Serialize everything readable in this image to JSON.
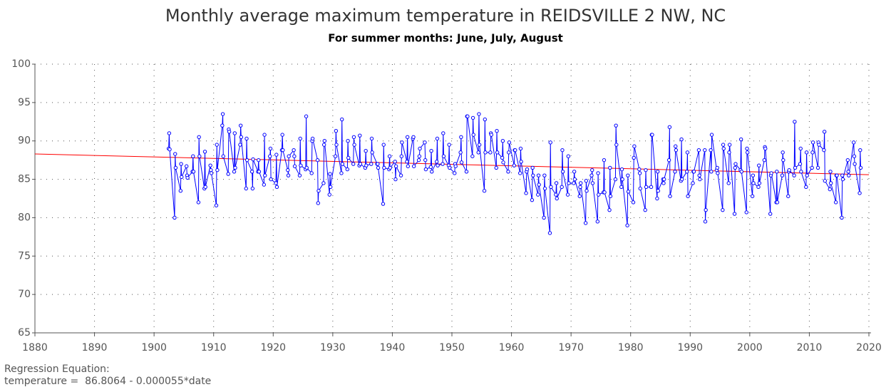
{
  "chart_data": {
    "type": "line",
    "title": "Monthly average maximum temperature in REIDSVILLE 2 NW, NC",
    "subtitle": "For summer months: June, July, August",
    "annotations": [
      "Regression Equation:",
      "temperature =  86.8064 - 0.000055*date"
    ],
    "xlim": [
      1880,
      2020
    ],
    "xticks": [
      1880,
      1890,
      1900,
      1910,
      1920,
      1930,
      1940,
      1950,
      1960,
      1970,
      1980,
      1990,
      2000,
      2010,
      2020
    ],
    "ylim": [
      65,
      100
    ],
    "yticks": [
      65,
      70,
      75,
      80,
      85,
      90,
      95,
      100
    ],
    "grid": true,
    "series": [
      {
        "color": "#0000ff",
        "markers": true,
        "x": [
          1902.45,
          1902.54,
          1902.62,
          1903.45,
          1903.54,
          1903.62,
          1904.45,
          1904.54,
          1904.62,
          1905.45,
          1905.54,
          1905.62,
          1906.45,
          1906.54,
          1906.62,
          1907.45,
          1907.54,
          1907.62,
          1908.45,
          1908.54,
          1908.62,
          1909.45,
          1909.54,
          1909.62,
          1910.45,
          1910.54,
          1910.62,
          1911.45,
          1911.54,
          1911.62,
          1912.45,
          1912.54,
          1912.62,
          1913.45,
          1913.54,
          1913.62,
          1914.45,
          1914.54,
          1914.62,
          1915.45,
          1915.54,
          1915.62,
          1916.45,
          1916.54,
          1916.62,
          1917.45,
          1917.54,
          1917.62,
          1918.45,
          1918.54,
          1918.62,
          1919.45,
          1919.54,
          1919.62,
          1920.45,
          1920.54,
          1920.62,
          1921.45,
          1921.54,
          1921.62,
          1922.45,
          1922.54,
          1922.62,
          1923.45,
          1923.54,
          1923.62,
          1924.45,
          1924.54,
          1924.62,
          1925.45,
          1925.54,
          1925.62,
          1926.45,
          1926.54,
          1926.62,
          1927.45,
          1927.54,
          1927.62,
          1928.45,
          1928.54,
          1928.62,
          1929.45,
          1929.54,
          1929.62,
          1930.45,
          1930.54,
          1930.62,
          1931.45,
          1931.54,
          1931.62,
          1932.45,
          1932.54,
          1932.62,
          1933.45,
          1933.54,
          1933.62,
          1934.45,
          1934.54,
          1934.62,
          1935.45,
          1935.54,
          1935.62,
          1936.45,
          1936.54,
          1936.62,
          1937.45,
          1937.54,
          1937.62,
          1938.45,
          1938.54,
          1938.62,
          1939.45,
          1939.54,
          1939.62,
          1940.45,
          1940.54,
          1940.62,
          1941.45,
          1941.54,
          1941.62,
          1942.45,
          1942.54,
          1942.62,
          1943.45,
          1943.54,
          1943.62,
          1944.45,
          1944.54,
          1944.62,
          1945.45,
          1945.54,
          1945.62,
          1946.45,
          1946.54,
          1946.62,
          1947.45,
          1947.54,
          1947.62,
          1948.45,
          1948.54,
          1948.62,
          1949.45,
          1949.54,
          1949.62,
          1950.45,
          1950.54,
          1950.62,
          1951.45,
          1951.54,
          1951.62,
          1952.45,
          1952.54,
          1952.62,
          1953.45,
          1953.54,
          1953.62,
          1954.45,
          1954.54,
          1954.62,
          1955.45,
          1955.54,
          1955.62,
          1956.45,
          1956.54,
          1956.62,
          1957.45,
          1957.54,
          1957.62,
          1958.45,
          1958.54,
          1958.62,
          1959.45,
          1959.54,
          1959.62,
          1960.45,
          1960.54,
          1960.62,
          1961.45,
          1961.54,
          1961.62,
          1962.45,
          1962.54,
          1962.62,
          1963.45,
          1963.54,
          1963.62,
          1964.45,
          1964.54,
          1964.62,
          1965.45,
          1965.54,
          1965.62,
          1966.45,
          1966.54,
          1966.62,
          1967.45,
          1967.54,
          1967.62,
          1968.45,
          1968.54,
          1968.62,
          1969.45,
          1969.54,
          1969.62,
          1970.45,
          1970.54,
          1970.62,
          1971.45,
          1971.54,
          1971.62,
          1972.45,
          1972.54,
          1972.62,
          1973.45,
          1973.54,
          1973.62,
          1974.45,
          1974.54,
          1974.62,
          1975.45,
          1975.54,
          1975.62,
          1976.45,
          1976.54,
          1976.62,
          1977.45,
          1977.54,
          1977.62,
          1978.45,
          1978.54,
          1978.62,
          1979.45,
          1979.54,
          1979.62,
          1980.45,
          1980.54,
          1980.62,
          1981.45,
          1981.54,
          1981.62,
          1982.45,
          1982.54,
          1982.62,
          1983.45,
          1983.54,
          1983.62,
          1984.45,
          1984.54,
          1984.62,
          1985.45,
          1985.54,
          1985.62,
          1986.45,
          1986.54,
          1986.62,
          1987.45,
          1987.54,
          1987.62,
          1988.45,
          1988.54,
          1988.62,
          1989.45,
          1989.54,
          1989.62,
          1990.45,
          1990.54,
          1990.62,
          1991.45,
          1991.54,
          1991.62,
          1992.45,
          1992.54,
          1992.62,
          1993.45,
          1993.54,
          1993.62,
          1994.45,
          1994.54,
          1994.62,
          1995.45,
          1995.54,
          1995.62,
          1996.45,
          1996.54,
          1996.62,
          1997.45,
          1997.54,
          1997.62,
          1998.45,
          1998.54,
          1998.62,
          1999.45,
          1999.54,
          1999.62,
          2000.45,
          2000.54,
          2000.62,
          2001.45,
          2001.54,
          2001.62,
          2002.45,
          2002.54,
          2002.62,
          2003.45,
          2003.54,
          2003.62,
          2004.45,
          2004.54,
          2004.62,
          2005.45,
          2005.54,
          2005.62,
          2006.45,
          2006.54,
          2006.62,
          2007.45,
          2007.54,
          2007.62,
          2008.45,
          2008.54,
          2008.62,
          2009.45,
          2009.54,
          2009.62,
          2010.45,
          2010.54,
          2010.62,
          2011.45,
          2011.54,
          2011.62,
          2012.45,
          2012.54,
          2012.62,
          2013.45,
          2013.54,
          2013.62,
          2014.45,
          2014.54,
          2014.62,
          2015.45,
          2015.54,
          2015.62,
          2016.45,
          2016.54,
          2016.62,
          2017.45,
          2017.54,
          2017.62,
          2018.45,
          2018.54,
          2018.62
        ],
        "values": [
          89.0,
          91.0,
          88.9,
          80.0,
          88.3,
          86.5,
          83.5,
          87.0,
          85.3,
          86.7,
          85.5,
          85.2,
          86.0,
          88.0,
          86.0,
          82.0,
          90.5,
          88.0,
          83.8,
          88.6,
          84.0,
          86.8,
          86.2,
          85.8,
          81.6,
          89.5,
          86.2,
          92.0,
          93.5,
          88.0,
          85.7,
          91.5,
          91.2,
          86.0,
          91.0,
          86.5,
          89.5,
          92.0,
          90.5,
          83.8,
          90.3,
          87.5,
          86.0,
          83.8,
          87.6,
          86.0,
          87.5,
          86.0,
          84.3,
          90.8,
          85.5,
          88.0,
          89.0,
          85.0,
          84.5,
          88.2,
          84.0,
          88.8,
          90.8,
          88.8,
          86.2,
          85.5,
          88.0,
          88.8,
          88.0,
          86.7,
          85.5,
          90.3,
          86.8,
          86.3,
          93.2,
          86.5,
          85.8,
          90.0,
          90.3,
          87.5,
          81.9,
          83.5,
          84.5,
          89.5,
          90.0,
          83.0,
          85.7,
          84.0,
          88.0,
          91.3,
          89.5,
          85.8,
          92.8,
          87.0,
          86.3,
          90.0,
          87.8,
          87.0,
          90.5,
          89.5,
          86.8,
          90.7,
          87.0,
          86.5,
          88.7,
          86.8,
          87.0,
          90.3,
          88.5,
          87.0,
          87.0,
          86.5,
          81.8,
          89.5,
          86.5,
          86.3,
          88.0,
          86.5,
          87.3,
          85.0,
          86.7,
          85.5,
          88.0,
          89.8,
          87.3,
          90.5,
          86.7,
          90.3,
          90.5,
          86.7,
          87.5,
          88.0,
          89.0,
          89.8,
          87.5,
          86.3,
          86.6,
          88.7,
          86.0,
          87.3,
          90.3,
          86.8,
          87.0,
          91.0,
          88.0,
          86.8,
          89.5,
          86.5,
          85.8,
          87.0,
          86.7,
          88.5,
          90.5,
          87.2,
          86.0,
          93.2,
          93.2,
          88.0,
          93.0,
          90.8,
          88.5,
          93.5,
          89.5,
          83.5,
          92.8,
          88.5,
          88.5,
          91.0,
          90.8,
          86.5,
          91.3,
          88.5,
          87.8,
          90.0,
          87.2,
          86.0,
          88.5,
          89.8,
          86.8,
          88.8,
          88.8,
          85.8,
          89.0,
          87.3,
          83.2,
          86.0,
          86.3,
          82.3,
          86.5,
          85.5,
          83.0,
          85.5,
          84.3,
          80.0,
          85.5,
          83.8,
          78.0,
          89.8,
          84.0,
          83.0,
          84.5,
          82.5,
          84.0,
          88.8,
          86.0,
          83.0,
          88.0,
          84.5,
          84.5,
          86.0,
          85.0,
          82.8,
          84.0,
          84.5,
          79.3,
          84.8,
          83.5,
          85.5,
          86.2,
          84.5,
          79.5,
          85.8,
          83.0,
          83.3,
          87.5,
          83.3,
          81.0,
          86.5,
          82.8,
          85.0,
          92.0,
          89.5,
          84.0,
          86.3,
          85.0,
          79.0,
          85.5,
          83.4,
          82.0,
          87.8,
          89.3,
          86.3,
          85.8,
          83.8,
          81.0,
          86.2,
          84.0,
          84.0,
          90.8,
          90.8,
          82.5,
          86.0,
          83.5,
          85.0,
          84.5,
          85.0,
          87.5,
          91.8,
          82.8,
          86.0,
          89.3,
          88.8,
          84.8,
          90.2,
          85.0,
          86.0,
          88.5,
          82.8,
          84.5,
          86.0,
          86.0,
          88.8,
          85.5,
          85.0,
          88.8,
          79.5,
          81.0,
          88.8,
          86.0,
          90.8,
          86.2,
          86.5,
          85.8,
          81.0,
          89.5,
          89.0,
          84.5,
          88.5,
          89.5,
          80.5,
          86.5,
          87.0,
          86.2,
          90.2,
          86.0,
          80.7,
          89.0,
          88.5,
          82.8,
          85.5,
          84.5,
          84.0,
          86.8,
          84.5,
          87.5,
          89.2,
          89.0,
          80.5,
          85.5,
          85.8,
          82.0,
          86.0,
          82.0,
          85.5,
          88.5,
          87.5,
          82.8,
          86.0,
          86.2,
          85.5,
          92.5,
          86.5,
          87.0,
          89.0,
          86.0,
          84.0,
          88.5,
          85.5,
          86.5,
          88.5,
          89.8,
          86.5,
          89.8,
          89.5,
          88.8,
          91.2,
          84.8,
          83.7,
          86.0,
          84.5,
          82.0,
          85.5,
          85.5,
          80.0,
          85.5,
          85.0,
          87.5,
          86.0,
          85.5,
          89.8,
          88.0,
          87.0,
          83.2,
          88.8,
          86.5
        ]
      },
      {
        "color": "#ff0000",
        "markers": false,
        "x": [
          1880,
          2020
        ],
        "values": [
          88.3,
          85.6
        ]
      }
    ]
  }
}
